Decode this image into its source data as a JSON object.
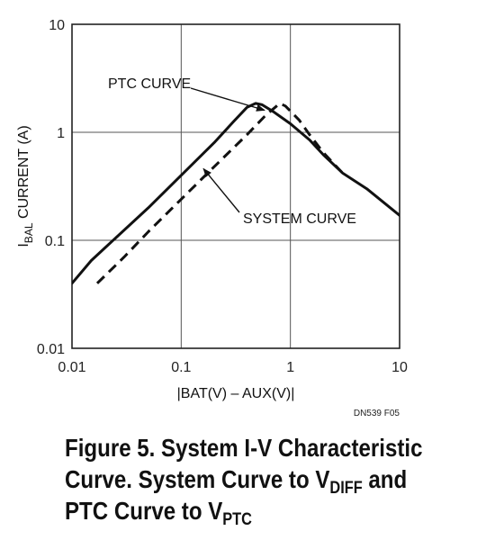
{
  "chart_data": {
    "type": "line",
    "title": "",
    "xlabel": "|BAT(V) – AUX(V)|",
    "ylabel": {
      "main": "I",
      "sub": "BAL",
      "rest": " CURRENT (A)"
    },
    "x_scale": "log",
    "y_scale": "log",
    "xlim": [
      0.01,
      10
    ],
    "ylim": [
      0.01,
      10
    ],
    "x_ticks": [
      0.01,
      0.1,
      1,
      10
    ],
    "x_tick_labels": [
      "0.01",
      "0.1",
      "1",
      "10"
    ],
    "y_ticks": [
      0.01,
      0.1,
      1,
      10
    ],
    "y_tick_labels": [
      "0.01",
      "0.1",
      "1",
      "10"
    ],
    "grid": true,
    "series": [
      {
        "name": "PTC CURVE",
        "style": "solid",
        "x": [
          0.01,
          0.015,
          0.02,
          0.05,
          0.1,
          0.2,
          0.3,
          0.4,
          0.48,
          0.55,
          0.7,
          1.0,
          1.5,
          2.0,
          3.0,
          5.0,
          10.0
        ],
        "y": [
          0.04,
          0.065,
          0.085,
          0.2,
          0.4,
          0.8,
          1.25,
          1.7,
          1.85,
          1.8,
          1.55,
          1.2,
          0.85,
          0.62,
          0.42,
          0.3,
          0.17
        ]
      },
      {
        "name": "SYSTEM CURVE",
        "style": "dashed",
        "x": [
          0.017,
          0.03,
          0.05,
          0.1,
          0.2,
          0.4,
          0.6,
          0.8,
          0.9,
          1.2,
          1.5,
          2.0,
          3.0
        ],
        "y": [
          0.04,
          0.07,
          0.12,
          0.24,
          0.48,
          0.95,
          1.45,
          1.85,
          1.75,
          1.3,
          0.95,
          0.65,
          0.42
        ]
      }
    ],
    "annotations": [
      {
        "label": "PTC CURVE",
        "target": [
          0.58,
          1.6
        ]
      },
      {
        "label": "SYSTEM CURVE",
        "target": [
          0.16,
          0.46
        ]
      }
    ],
    "figure_code": "DN539 F05"
  },
  "caption": {
    "line1": "Figure 5. System I-V Characteristic",
    "line2_pre": "Curve. System Curve to V",
    "line2_sub": "DIFF",
    "line2_post": " and",
    "line3_pre": "PTC Curve to V",
    "line3_sub": "PTC"
  }
}
